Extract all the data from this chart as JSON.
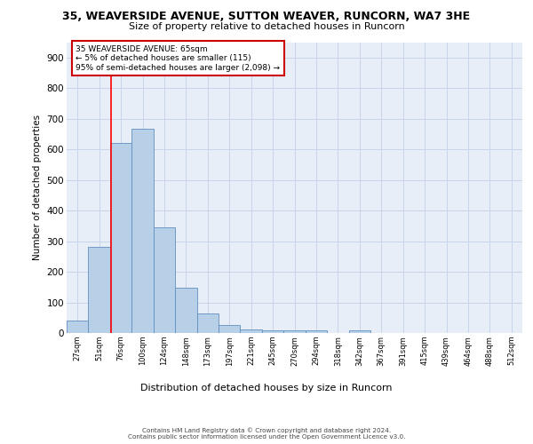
{
  "title_line1": "35, WEAVERSIDE AVENUE, SUTTON WEAVER, RUNCORN, WA7 3HE",
  "title_line2": "Size of property relative to detached houses in Runcorn",
  "xlabel": "Distribution of detached houses by size in Runcorn",
  "ylabel": "Number of detached properties",
  "categories": [
    "27sqm",
    "51sqm",
    "76sqm",
    "100sqm",
    "124sqm",
    "148sqm",
    "173sqm",
    "197sqm",
    "221sqm",
    "245sqm",
    "270sqm",
    "294sqm",
    "318sqm",
    "342sqm",
    "367sqm",
    "391sqm",
    "415sqm",
    "439sqm",
    "464sqm",
    "488sqm",
    "512sqm"
  ],
  "bar_heights": [
    42,
    280,
    620,
    668,
    345,
    148,
    65,
    27,
    12,
    10,
    10,
    10,
    0,
    8,
    0,
    0,
    0,
    0,
    0,
    0,
    0
  ],
  "bar_color": "#b8cfe8",
  "bar_edge_color": "#6090c0",
  "vline_x": 1.56,
  "annotation_text": "35 WEAVERSIDE AVENUE: 65sqm\n← 5% of detached houses are smaller (115)\n95% of semi-detached houses are larger (2,098) →",
  "ann_box_edge_color": "#cc0000",
  "ann_box_face_color": "white",
  "yticks": [
    0,
    100,
    200,
    300,
    400,
    500,
    600,
    700,
    800,
    900
  ],
  "ylim_max": 950,
  "grid_color": "#c8d4e8",
  "bg_color": "#e8eef8",
  "footer1": "Contains HM Land Registry data © Crown copyright and database right 2024.",
  "footer2": "Contains public sector information licensed under the Open Government Licence v3.0."
}
